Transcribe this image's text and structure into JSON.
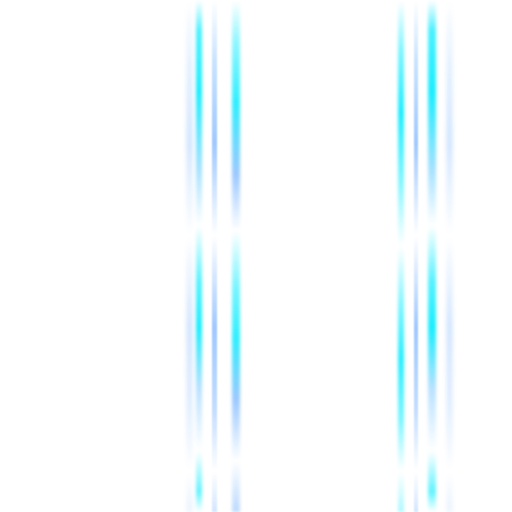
{
  "palette": {
    "background": "#ffffff",
    "cyan": "#00ebff",
    "blue": "#5aa0ff"
  },
  "scene": {
    "description_visible_text": ""
  }
}
